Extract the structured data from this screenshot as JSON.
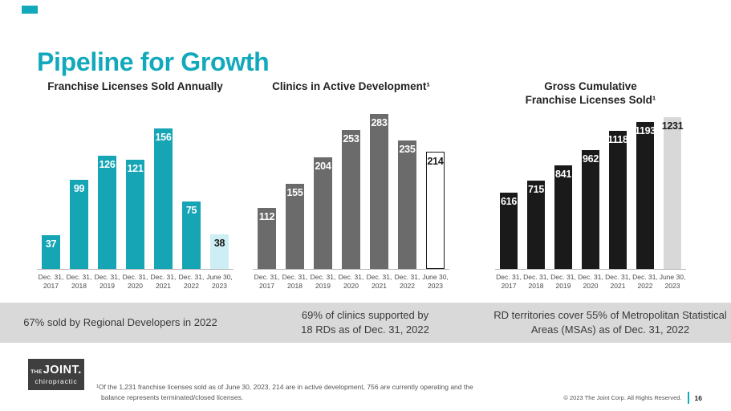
{
  "slide": {
    "title": "Pipeline for Growth",
    "accent_color": "#12a9bc"
  },
  "chart_data": [
    {
      "type": "bar",
      "title": "Franchise Licenses Sold Annually",
      "categories": [
        "Dec. 31,\n2017",
        "Dec. 31,\n2018",
        "Dec. 31,\n2019",
        "Dec. 31,\n2020",
        "Dec. 31,\n2021",
        "Dec. 31,\n2022",
        "June 30,\n2023"
      ],
      "values": [
        37,
        99,
        126,
        121,
        156,
        75,
        38
      ],
      "bar_color": "#15a5b5",
      "highlight_index": 6,
      "highlight_style": "light-fill",
      "highlight_color": "#cdeef4",
      "value_label_color": "#ffffff",
      "highlight_label_color": "#1a1a1a",
      "grid": false,
      "legend": "none"
    },
    {
      "type": "bar",
      "title": "Clinics in Active Development¹",
      "categories": [
        "Dec. 31,\n2017",
        "Dec. 31,\n2018",
        "Dec. 31,\n2019",
        "Dec. 31,\n2020",
        "Dec. 31,\n2021",
        "Dec. 31,\n2022",
        "June 30,\n2023"
      ],
      "values": [
        112,
        155,
        204,
        253,
        283,
        235,
        214
      ],
      "bar_color": "#6b6b6b",
      "highlight_index": 6,
      "highlight_style": "outline",
      "highlight_color": "#ffffff",
      "outline_color": "#1a1a1a",
      "value_label_color": "#ffffff",
      "highlight_label_color": "#1a1a1a",
      "grid": false,
      "legend": "none"
    },
    {
      "type": "bar",
      "title": "Gross Cumulative\nFranchise Licenses Sold¹",
      "categories": [
        "Dec. 31,\n2017",
        "Dec. 31,\n2018",
        "Dec. 31,\n2019",
        "Dec. 31,\n2020",
        "Dec. 31,\n2021",
        "Dec. 31,\n2022",
        "June 30,\n2023"
      ],
      "values": [
        616,
        715,
        841,
        962,
        1118,
        1193,
        1231
      ],
      "bar_color": "#1a1a1a",
      "highlight_index": 6,
      "highlight_style": "light-fill",
      "highlight_color": "#d8d8d8",
      "value_label_color": "#ffffff",
      "highlight_label_color": "#1a1a1a",
      "grid": false,
      "legend": "none"
    }
  ],
  "callouts": [
    "67% sold by Regional Developers in 2022",
    "69% of clinics supported by\n18 RDs as of Dec. 31, 2022",
    "RD territories cover 55% of Metropolitan Statistical\nAreas (MSAs) as of Dec. 31,  2022"
  ],
  "footnote": {
    "line1": "¹Of the 1,231 franchise licenses sold as of June 30, 2023, 214 are in active development, 756 are currently operating and the",
    "line2": "balance represents terminated/closed licenses."
  },
  "footer": {
    "logo_the": "THE",
    "logo_joint": "JOINT.",
    "logo_tagline": "chiropractic",
    "copyright": "© 2023 The Joint Corp. All Rights Reserved.",
    "page_number": "16"
  }
}
